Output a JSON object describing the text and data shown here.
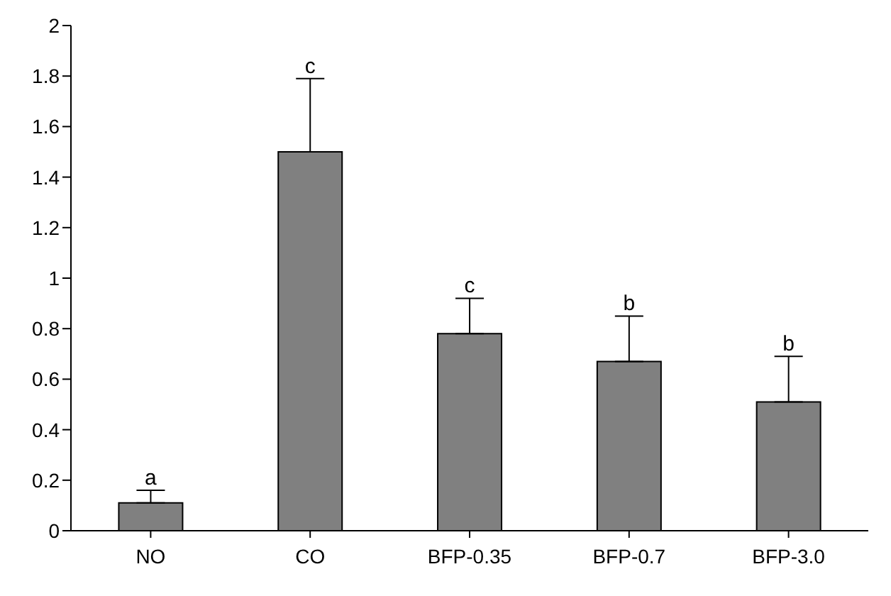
{
  "chart_data": {
    "type": "bar",
    "categories": [
      "NO",
      "CO",
      "BFP-0.35",
      "BFP-0.7",
      "BFP-3.0"
    ],
    "values": [
      0.11,
      1.5,
      0.78,
      0.67,
      0.51
    ],
    "errors": [
      [
        0.11,
        0.16
      ],
      [
        1.5,
        1.79
      ],
      [
        0.78,
        0.92
      ],
      [
        0.67,
        0.85
      ],
      [
        0.51,
        0.69
      ]
    ],
    "color": "#808080",
    "ylim": [
      0,
      2
    ],
    "yticks": [
      0,
      0.2,
      0.4,
      0.6,
      0.8,
      1,
      1.2,
      1.4,
      1.6,
      1.8,
      2
    ],
    "annotations": [
      {
        "text": "a",
        "x": "NO",
        "y": 0.16
      },
      {
        "text": "c",
        "x": "CO",
        "y": 1.79
      },
      {
        "text": "c",
        "x": "BFP-0.35",
        "y": 0.92
      },
      {
        "text": "b",
        "x": "BFP-0.7",
        "y": 0.85
      },
      {
        "text": "b",
        "x": "BFP-3.0",
        "y": 0.69
      }
    ],
    "grid": false,
    "legend": false
  }
}
